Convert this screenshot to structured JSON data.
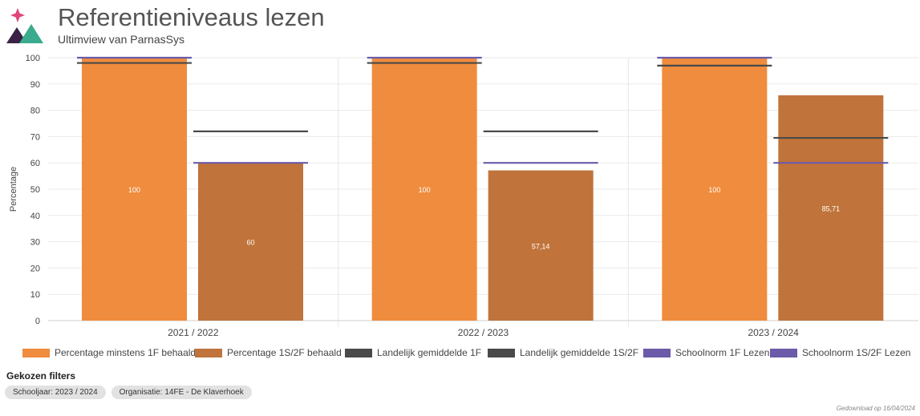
{
  "header": {
    "title": "Referentieniveaus lezen",
    "subtitle": "Ultimview van ParnasSys"
  },
  "colors": {
    "bar_1f": "#F08C3D",
    "bar_1s2f": "#C0733A",
    "landelijk": "#4a4a4a",
    "schoolnorm": "#6b5ba8",
    "logo_pink": "#e0457b",
    "logo_green": "#3aab8c",
    "logo_dark": "#3a2346"
  },
  "chart_data": {
    "type": "bar",
    "categories": [
      "2021 / 2022",
      "2022 / 2023",
      "2023 / 2024"
    ],
    "ylabel": "Percentage",
    "ylim": [
      0,
      100
    ],
    "yticks": [
      0,
      10,
      20,
      30,
      40,
      50,
      60,
      70,
      80,
      90,
      100
    ],
    "grid": true,
    "legend_position": "bottom",
    "series": [
      {
        "name": "Percentage minstens 1F behaald",
        "type": "bar",
        "values": [
          100,
          100,
          100
        ],
        "labels": [
          "100",
          "100",
          "100"
        ]
      },
      {
        "name": "Percentage 1S/2F behaald",
        "type": "bar",
        "values": [
          60,
          57.14,
          85.71
        ],
        "labels": [
          "60",
          "57,14",
          "85,71"
        ]
      },
      {
        "name": "Landelijk gemiddelde 1F",
        "type": "marker",
        "target": 0,
        "values": [
          98,
          98,
          97
        ]
      },
      {
        "name": "Landelijk gemiddelde 1S/2F",
        "type": "marker",
        "target": 1,
        "values": [
          72,
          72,
          69.5
        ]
      },
      {
        "name": "Schoolnorm 1F Lezen",
        "type": "marker",
        "target": 0,
        "values": [
          100,
          100,
          100
        ]
      },
      {
        "name": "Schoolnorm 1S/2F Lezen",
        "type": "marker",
        "target": 1,
        "values": [
          60,
          60,
          60
        ]
      }
    ]
  },
  "filters": {
    "title": "Gekozen filters",
    "chips": [
      "Schooljaar: 2023 / 2024",
      "Organisatie: 14FE - De Klaverhoek"
    ]
  },
  "footer": {
    "download_note": "Gedownload op 16/04/2024"
  }
}
